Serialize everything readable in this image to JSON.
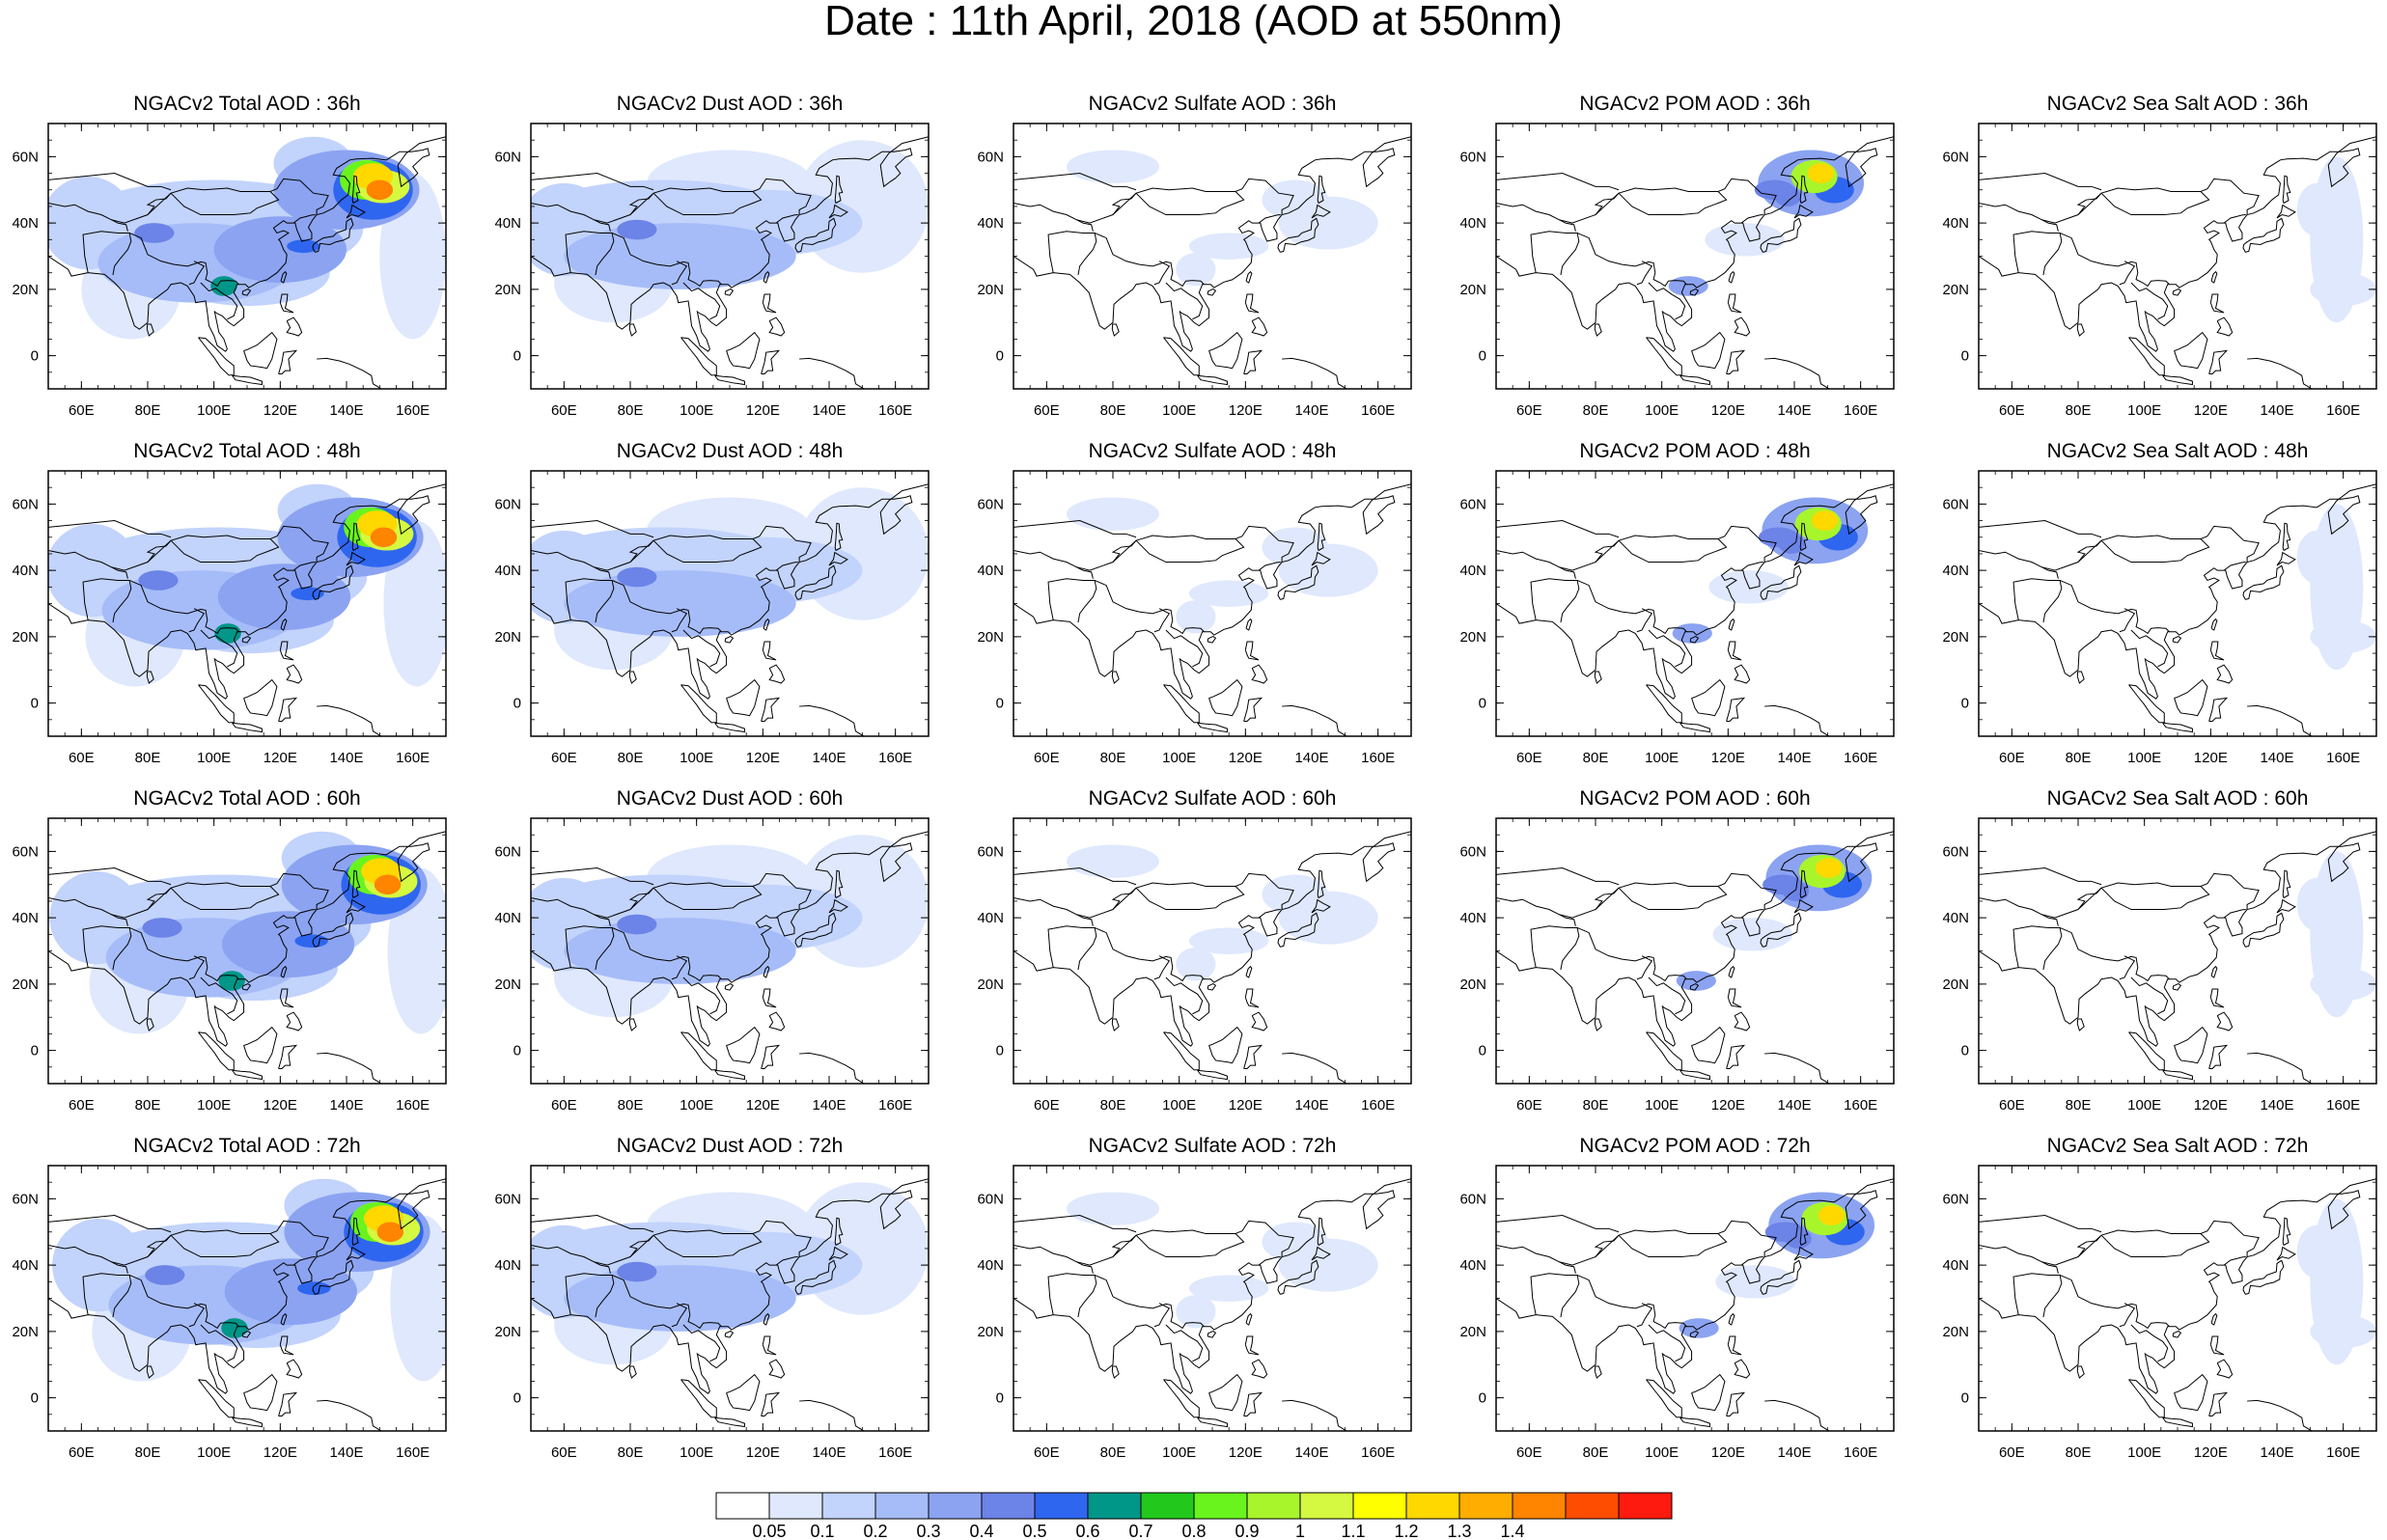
{
  "title": "Date : 11th April, 2018 (AOD at 550nm)",
  "species": [
    {
      "key": "total",
      "name": "Total AOD"
    },
    {
      "key": "dust",
      "name": "Dust AOD"
    },
    {
      "key": "sulfate",
      "name": "Sulfate AOD"
    },
    {
      "key": "pom",
      "name": "POM AOD"
    },
    {
      "key": "seasalt",
      "name": "Sea Salt AOD"
    }
  ],
  "lead_times": [
    "36h",
    "48h",
    "60h",
    "72h"
  ],
  "panel_titles": [
    [
      "NGACv2 Total AOD : 36h",
      "NGACv2 Dust AOD : 36h",
      "NGACv2 Sulfate AOD : 36h",
      "NGACv2 POM AOD : 36h",
      "NGACv2 Sea Salt AOD : 36h"
    ],
    [
      "NGACv2 Total AOD : 48h",
      "NGACv2 Dust AOD : 48h",
      "NGACv2 Sulfate AOD : 48h",
      "NGACv2 POM AOD : 48h",
      "NGACv2 Sea Salt AOD : 48h"
    ],
    [
      "NGACv2 Total AOD : 60h",
      "NGACv2 Dust AOD : 60h",
      "NGACv2 Sulfate AOD : 60h",
      "NGACv2 POM AOD : 60h",
      "NGACv2 Sea Salt AOD : 60h"
    ],
    [
      "NGACv2 Total AOD : 72h",
      "NGACv2 Dust AOD : 72h",
      "NGACv2 Sulfate AOD : 72h",
      "NGACv2 POM AOD : 72h",
      "NGACv2 Sea Salt  AOD : 72h"
    ]
  ],
  "map_extent": {
    "lon_min": 50,
    "lon_max": 170,
    "lat_min": -10,
    "lat_max": 70
  },
  "x_ticks": [
    {
      "value": 60,
      "label": "60E"
    },
    {
      "value": 80,
      "label": "80E"
    },
    {
      "value": 100,
      "label": "100E"
    },
    {
      "value": 120,
      "label": "120E"
    },
    {
      "value": 140,
      "label": "140E"
    },
    {
      "value": 160,
      "label": "160E"
    }
  ],
  "y_ticks": [
    {
      "value": 60,
      "label": "60N"
    },
    {
      "value": 40,
      "label": "40N"
    },
    {
      "value": 20,
      "label": "20N"
    },
    {
      "value": 0,
      "label": "0"
    }
  ],
  "colorbar": {
    "colors": [
      "#ffffff",
      "#dfe8fd",
      "#c2d3fc",
      "#a6bcf8",
      "#8ba3f1",
      "#6c83e7",
      "#2f66f0",
      "#009688",
      "#22c91c",
      "#69f41e",
      "#a8f52c",
      "#d5f840",
      "#ffff00",
      "#ffd800",
      "#ffae00",
      "#ff8400",
      "#ff4d00",
      "#ff1a0f"
    ],
    "labels": [
      "0.05",
      "0.1",
      "0.2",
      "0.3",
      "0.4",
      "0.5",
      "0.6",
      "0.7",
      "0.8",
      "0.9",
      "1",
      "1.1",
      "1.2",
      "1.3",
      "1.4"
    ]
  }
}
